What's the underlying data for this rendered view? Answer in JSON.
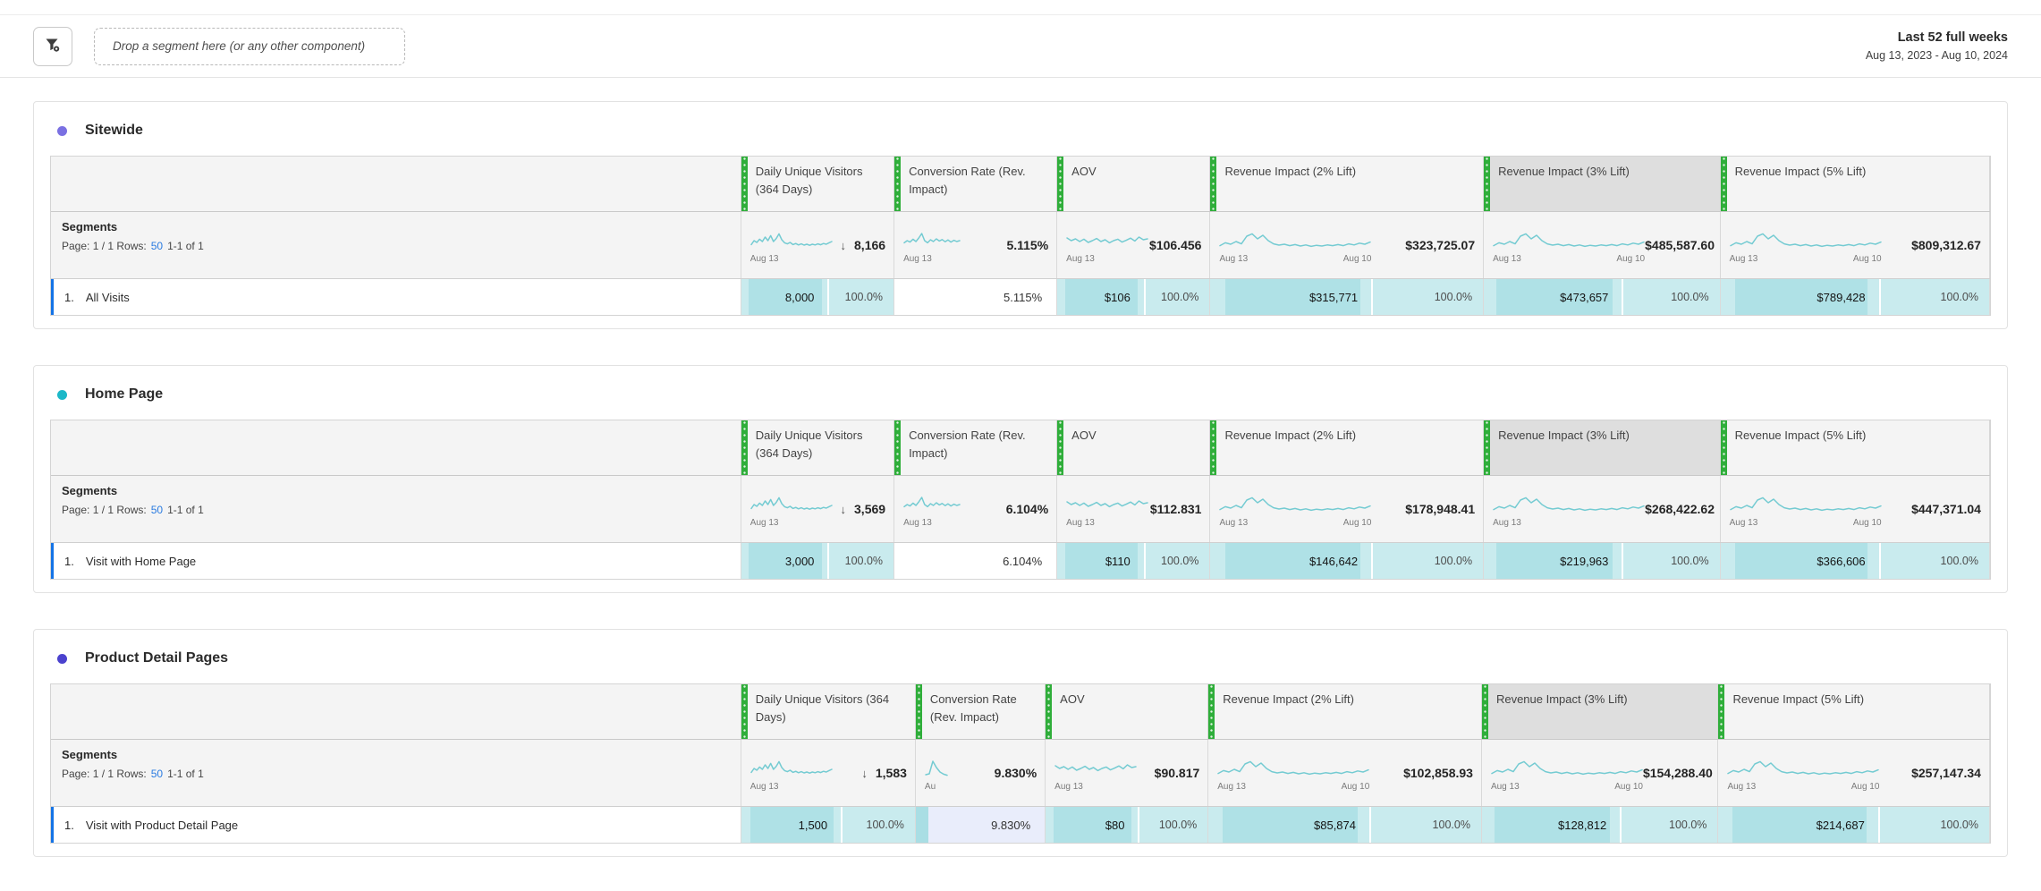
{
  "topbar": {
    "dropzone_text": "Drop a segment here (or any other component)",
    "filter_icon": "segment-filter-icon",
    "date_range_title": "Last 52 full weeks",
    "date_range_sub": "Aug 13, 2023 - Aug 10, 2024"
  },
  "colors": {
    "accent_blue": "#1473e6",
    "link_blue": "#2a7be1",
    "column_handle_green": "#2fae3a",
    "spark_teal": "#74cbd2",
    "cell_teal_bg": "#c9ebee",
    "cell_teal_band": "#afe1e6",
    "cell_lavender_bg": "#e9edfb",
    "selected_header_gray": "#dedede"
  },
  "sparklines": {
    "visitors": [
      0.72,
      0.5,
      0.6,
      0.42,
      0.55,
      0.3,
      0.5,
      0.22,
      0.55,
      0.38,
      0.12,
      0.45,
      0.62,
      0.68,
      0.6,
      0.72,
      0.66,
      0.74,
      0.68,
      0.75,
      0.7,
      0.76,
      0.7,
      0.74,
      0.68,
      0.73,
      0.66,
      0.7,
      0.62,
      0.55
    ],
    "conversion": [
      0.62,
      0.5,
      0.58,
      0.42,
      0.55,
      0.35,
      0.1,
      0.5,
      0.62,
      0.45,
      0.55,
      0.4,
      0.52,
      0.44,
      0.56,
      0.46,
      0.58,
      0.48,
      0.55,
      0.5
    ],
    "aov": [
      0.35,
      0.5,
      0.4,
      0.55,
      0.42,
      0.6,
      0.5,
      0.38,
      0.55,
      0.45,
      0.62,
      0.5,
      0.42,
      0.58,
      0.48,
      0.36,
      0.52,
      0.3,
      0.45,
      0.4
    ],
    "revenue": [
      0.78,
      0.62,
      0.7,
      0.55,
      0.68,
      0.25,
      0.12,
      0.4,
      0.2,
      0.5,
      0.68,
      0.75,
      0.7,
      0.78,
      0.72,
      0.8,
      0.74,
      0.82,
      0.76,
      0.8,
      0.74,
      0.78,
      0.72,
      0.78,
      0.68,
      0.74,
      0.64,
      0.7,
      0.58
    ],
    "tiny": [
      0.85,
      0.8,
      0.1,
      0.45,
      0.7,
      0.82,
      0.88
    ]
  },
  "panels": [
    {
      "title": "Sitewide",
      "dot_color": "#7a70e2",
      "segments_title": "Segments",
      "page_label": "Page: 1 / 1 Rows:",
      "rows_link": "50",
      "range_label": "1-1 of 1",
      "row_index": "1.",
      "row_name": "All Visits",
      "columns": [
        {
          "label": "Daily Unique Visitors (364 Days)",
          "spark": "visitors",
          "axis_start": "Aug 13",
          "axis_end": "",
          "total_arrow": "↓",
          "total": "8,166",
          "cell": {
            "type": "teal",
            "value": "8,000",
            "pct": "100.0%"
          }
        },
        {
          "label": "Conversion Rate (Rev. Impact)",
          "spark": "conversion",
          "axis_start": "Aug 13",
          "axis_end": "",
          "total_arrow": "",
          "total": "5.115%",
          "cell": {
            "type": "plain",
            "value": "5.115%",
            "pct": ""
          }
        },
        {
          "label": "AOV",
          "spark": "aov",
          "axis_start": "Aug 13",
          "axis_end": "",
          "total_arrow": "",
          "total": "$106.456",
          "cell": {
            "type": "teal",
            "value": "$106",
            "pct": "100.0%"
          }
        },
        {
          "label": "Revenue Impact (2% Lift)",
          "spark": "revenue",
          "axis_start": "Aug 13",
          "axis_end": "Aug 10",
          "total_arrow": "",
          "total": "$323,725.07",
          "cell": {
            "type": "teal",
            "value": "$315,771",
            "pct": "100.0%"
          }
        },
        {
          "label": "Revenue Impact (3% Lift)",
          "selected": true,
          "spark": "revenue",
          "axis_start": "Aug 13",
          "axis_end": "Aug 10",
          "total_arrow": "",
          "total": "$485,587.60",
          "cell": {
            "type": "teal",
            "value": "$473,657",
            "pct": "100.0%"
          }
        },
        {
          "label": "Revenue Impact (5% Lift)",
          "spark": "revenue",
          "axis_start": "Aug 13",
          "axis_end": "Aug 10",
          "total_arrow": "",
          "total": "$809,312.67",
          "cell": {
            "type": "teal",
            "value": "$789,428",
            "pct": "100.0%"
          }
        }
      ]
    },
    {
      "title": "Home Page",
      "dot_color": "#1cb8c8",
      "segments_title": "Segments",
      "page_label": "Page: 1 / 1 Rows:",
      "rows_link": "50",
      "range_label": "1-1 of 1",
      "row_index": "1.",
      "row_name": "Visit with Home Page",
      "columns": [
        {
          "label": "Daily Unique Visitors (364 Days)",
          "spark": "visitors",
          "axis_start": "Aug 13",
          "axis_end": "",
          "total_arrow": "↓",
          "total": "3,569",
          "cell": {
            "type": "teal",
            "value": "3,000",
            "pct": "100.0%"
          }
        },
        {
          "label": "Conversion Rate (Rev. Impact)",
          "spark": "conversion",
          "axis_start": "Aug 13",
          "axis_end": "",
          "total_arrow": "",
          "total": "6.104%",
          "cell": {
            "type": "plain",
            "value": "6.104%",
            "pct": ""
          }
        },
        {
          "label": "AOV",
          "spark": "aov",
          "axis_start": "Aug 13",
          "axis_end": "",
          "total_arrow": "",
          "total": "$112.831",
          "cell": {
            "type": "teal",
            "value": "$110",
            "pct": "100.0%"
          }
        },
        {
          "label": "Revenue Impact (2% Lift)",
          "spark": "revenue",
          "axis_start": "Aug 13",
          "axis_end": "Aug 10",
          "total_arrow": "",
          "total": "$178,948.41",
          "cell": {
            "type": "teal",
            "value": "$146,642",
            "pct": "100.0%"
          }
        },
        {
          "label": "Revenue Impact (3% Lift)",
          "selected": true,
          "spark": "revenue",
          "axis_start": "Aug 13",
          "axis_end": "",
          "total_arrow": "",
          "total": "$268,422.62",
          "cell": {
            "type": "teal",
            "value": "$219,963",
            "pct": "100.0%"
          }
        },
        {
          "label": "Revenue Impact (5% Lift)",
          "spark": "revenue",
          "axis_start": "Aug 13",
          "axis_end": "Aug 10",
          "total_arrow": "",
          "total": "$447,371.04",
          "cell": {
            "type": "teal",
            "value": "$366,606",
            "pct": "100.0%"
          }
        }
      ]
    },
    {
      "title": "Product Detail Pages",
      "dot_color": "#4b42ce",
      "segments_title": "Segments",
      "page_label": "Page: 1 / 1 Rows:",
      "rows_link": "50",
      "range_label": "1-1 of 1",
      "row_index": "1.",
      "row_name": "Visit with Product Detail Page",
      "columns": [
        {
          "label": "Daily Unique Visitors (364 Days)",
          "spark": "visitors",
          "axis_start": "Aug 13",
          "axis_end": "",
          "total_arrow": "↓",
          "total": "1,583",
          "cell": {
            "type": "teal",
            "value": "1,500",
            "pct": "100.0%"
          }
        },
        {
          "label": "Conversion Rate (Rev. Impact)",
          "spark": "tiny",
          "axis_start": "Au",
          "axis_end": "",
          "total_arrow": "",
          "total": "9.830%",
          "cell": {
            "type": "lav",
            "value": "9.830%",
            "pct": ""
          }
        },
        {
          "label": "AOV",
          "spark": "aov",
          "axis_start": "Aug 13",
          "axis_end": "",
          "total_arrow": "",
          "total": "$90.817",
          "cell": {
            "type": "teal",
            "value": "$80",
            "pct": "100.0%"
          }
        },
        {
          "label": "Revenue Impact (2% Lift)",
          "spark": "revenue",
          "axis_start": "Aug 13",
          "axis_end": "Aug 10",
          "total_arrow": "",
          "total": "$102,858.93",
          "cell": {
            "type": "teal",
            "value": "$85,874",
            "pct": "100.0%"
          }
        },
        {
          "label": "Revenue Impact (3% Lift)",
          "selected": true,
          "spark": "revenue",
          "axis_start": "Aug 13",
          "axis_end": "Aug 10",
          "total_arrow": "",
          "total": "$154,288.40",
          "cell": {
            "type": "teal",
            "value": "$128,812",
            "pct": "100.0%"
          }
        },
        {
          "label": "Revenue Impact (5% Lift)",
          "spark": "revenue",
          "axis_start": "Aug 13",
          "axis_end": "Aug 10",
          "total_arrow": "",
          "total": "$257,147.34",
          "cell": {
            "type": "teal",
            "value": "$214,687",
            "pct": "100.0%"
          }
        }
      ]
    }
  ]
}
